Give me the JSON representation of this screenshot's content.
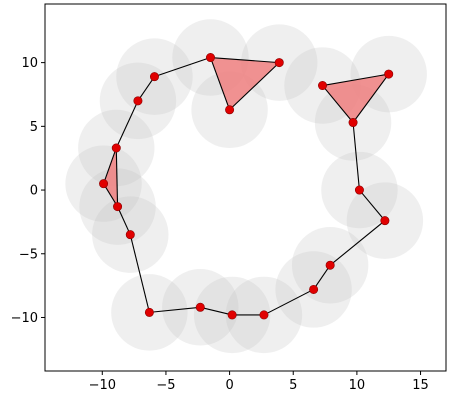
{
  "chart_data": {
    "type": "scatter",
    "title": "",
    "xlabel": "",
    "ylabel": "",
    "xlim": [
      -14.5,
      17.0
    ],
    "ylim": [
      -14.2,
      14.6
    ],
    "grid": false,
    "xticks": [
      -10,
      -5,
      0,
      5,
      10,
      15
    ],
    "yticks": [
      -10,
      -5,
      0,
      5,
      10
    ],
    "circle_radius": 3.0,
    "colors": {
      "circle_fill": "#bfbfbf",
      "circle_opacity": 0.25,
      "edge": "#000000",
      "point": "#e00000",
      "triangle_fill": "#f08080"
    },
    "points": [
      {
        "x": -1.5,
        "y": 10.4
      },
      {
        "x": 3.9,
        "y": 10.0
      },
      {
        "x": 0.0,
        "y": 6.3
      },
      {
        "x": -5.9,
        "y": 8.9
      },
      {
        "x": -7.2,
        "y": 7.0
      },
      {
        "x": -8.9,
        "y": 3.3
      },
      {
        "x": -9.9,
        "y": 0.5
      },
      {
        "x": -8.8,
        "y": -1.3
      },
      {
        "x": -7.8,
        "y": -3.5
      },
      {
        "x": -6.3,
        "y": -9.6
      },
      {
        "x": -2.3,
        "y": -9.2
      },
      {
        "x": 0.2,
        "y": -9.8
      },
      {
        "x": 2.7,
        "y": -9.8
      },
      {
        "x": 6.6,
        "y": -7.8
      },
      {
        "x": 7.9,
        "y": -5.9
      },
      {
        "x": 12.2,
        "y": -2.4
      },
      {
        "x": 10.2,
        "y": 0.0
      },
      {
        "x": 9.7,
        "y": 5.3
      },
      {
        "x": 7.3,
        "y": 8.2
      },
      {
        "x": 12.5,
        "y": 9.1
      }
    ],
    "edges": [
      [
        0,
        1
      ],
      [
        1,
        2
      ],
      [
        2,
        0
      ],
      [
        0,
        3
      ],
      [
        3,
        4
      ],
      [
        4,
        5
      ],
      [
        5,
        6
      ],
      [
        6,
        7
      ],
      [
        7,
        5
      ],
      [
        7,
        8
      ],
      [
        8,
        9
      ],
      [
        9,
        10
      ],
      [
        10,
        11
      ],
      [
        11,
        12
      ],
      [
        12,
        13
      ],
      [
        13,
        14
      ],
      [
        14,
        15
      ],
      [
        15,
        16
      ],
      [
        16,
        17
      ],
      [
        17,
        18
      ],
      [
        18,
        19
      ],
      [
        19,
        17
      ]
    ],
    "triangles": [
      [
        0,
        1,
        2
      ],
      [
        17,
        18,
        19
      ],
      [
        5,
        6,
        7
      ]
    ]
  }
}
